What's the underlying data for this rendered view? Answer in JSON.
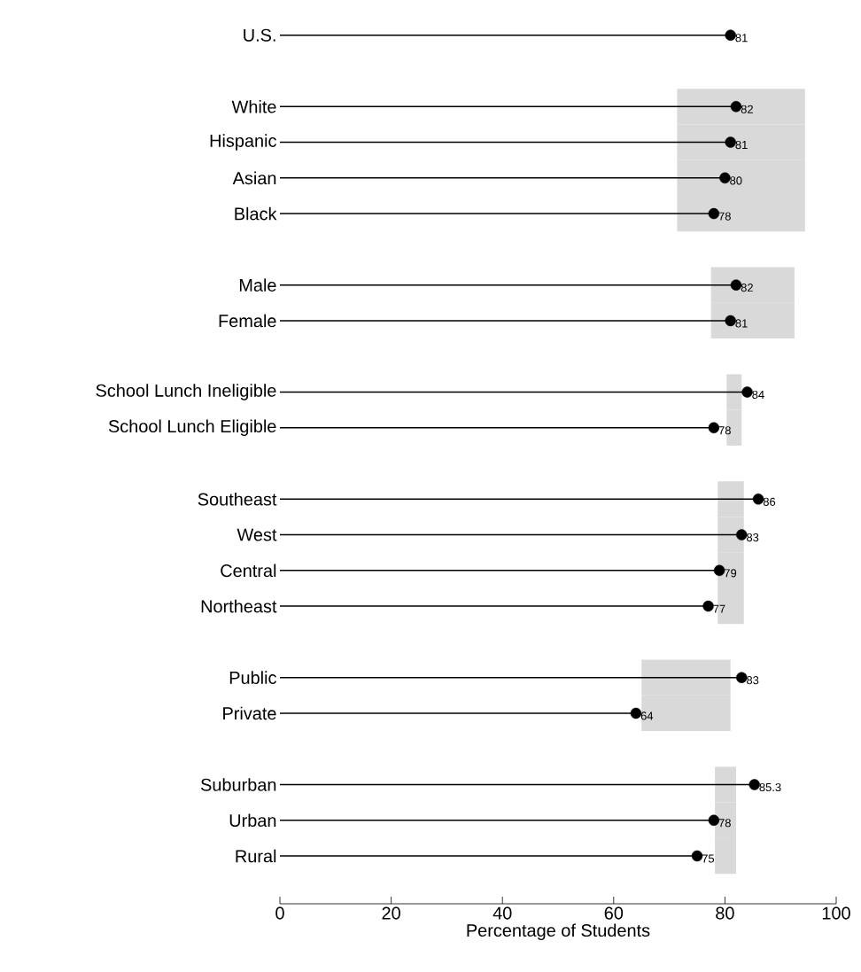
{
  "chart_data": {
    "type": "lollipop",
    "orientation": "horizontal",
    "xlabel": "Percentage of Students",
    "categories": [
      "U.S.",
      null,
      "White",
      "Hispanic",
      "Asian",
      "Black",
      null,
      "Male",
      "Female",
      null,
      "School Lunch Ineligible",
      "School Lunch Eligible",
      null,
      "Southeast",
      "West",
      "Central",
      "Northeast",
      null,
      "Public",
      "Private",
      null,
      "Suburban",
      "Urban",
      "Rural"
    ],
    "xlim": [
      0,
      100
    ],
    "xticks": [
      0,
      20,
      40,
      60,
      80,
      100
    ],
    "series": [
      {
        "type": "bar",
        "color": "#d9d9d9",
        "base": [
          null,
          null,
          71.4,
          71.4,
          71.4,
          71.4,
          null,
          77.5,
          77.5,
          null,
          80.3,
          80.3,
          null,
          78.7,
          78.7,
          78.7,
          78.7,
          null,
          65,
          65,
          null,
          78.2,
          78.2,
          78.2
        ],
        "values": [
          null,
          null,
          23,
          23,
          23,
          23,
          null,
          15,
          15,
          null,
          2.7,
          2.7,
          null,
          4.7,
          4.7,
          4.7,
          4.7,
          null,
          16,
          16,
          null,
          3.8,
          3.8,
          3.8
        ]
      },
      {
        "type": "lollipop",
        "color": "#000000",
        "values": [
          81,
          null,
          82,
          81,
          80,
          78,
          null,
          82,
          81,
          null,
          84,
          78,
          null,
          86,
          83,
          79,
          77,
          null,
          83,
          64,
          null,
          85.3,
          78,
          75
        ],
        "value_labels": [
          "81",
          null,
          "82",
          "81",
          "80",
          "78",
          null,
          "82",
          "81",
          null,
          "84",
          "78",
          null,
          "86",
          "83",
          "79",
          "77",
          null,
          "83",
          "64",
          null,
          "85.3",
          "78",
          "75"
        ]
      }
    ]
  }
}
